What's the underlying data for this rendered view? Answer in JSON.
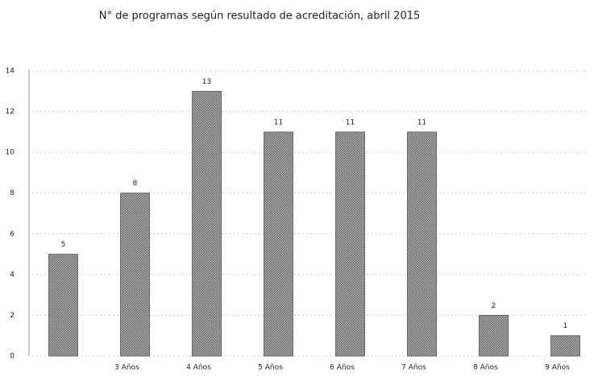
{
  "chart_data": {
    "type": "bar",
    "title": "N° de programas según resultado de acreditación, abril 2015",
    "categories": [
      null,
      "3 Años",
      "4 Años",
      "5 Años",
      "6 Años",
      "7 Años",
      "8 Años",
      "9 Años"
    ],
    "values": [
      5,
      8,
      13,
      11,
      11,
      11,
      2,
      1
    ],
    "color": "#a3a3a3",
    "ylim": [
      0,
      14
    ],
    "yticks": [
      0,
      2,
      4,
      6,
      8,
      10,
      12,
      14
    ],
    "grid": true
  }
}
